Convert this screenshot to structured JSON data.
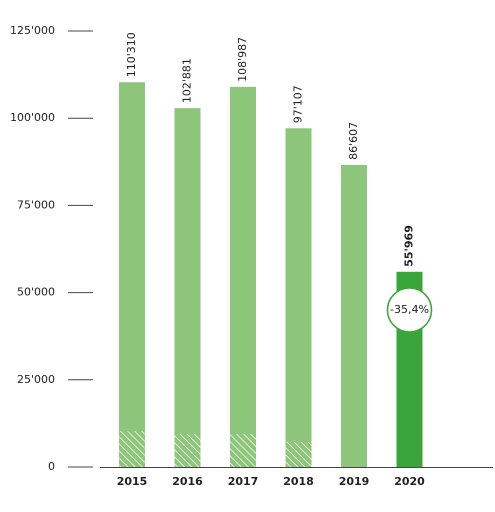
{
  "chart_data": {
    "type": "bar",
    "categories": [
      "2015",
      "2016",
      "2017",
      "2018",
      "2019",
      "2020"
    ],
    "values": [
      110310,
      102881,
      108987,
      97107,
      86607,
      55969
    ],
    "value_labels": [
      "110'310",
      "102'881",
      "108'987",
      "97'107",
      "86'607",
      "55'969"
    ],
    "hatched_values": [
      10300,
      9500,
      9500,
      7200,
      null,
      null
    ],
    "colors": [
      "#8dc57a",
      "#8dc57a",
      "#8dc57a",
      "#8dc57a",
      "#8dc57a",
      "#3aa53a"
    ],
    "highlight_index": 5,
    "annotation": "-35,4%",
    "ylim": [
      0,
      125000
    ],
    "yticks": [
      0,
      {
        "value": 25000,
        "label": "25'000"
      },
      {
        "value": 50000,
        "label": "50'000"
      },
      {
        "value": 75000,
        "label": "75'000"
      },
      {
        "value": 100000,
        "label": "100'000"
      },
      {
        "value": 125000,
        "label": "125'000"
      }
    ]
  }
}
